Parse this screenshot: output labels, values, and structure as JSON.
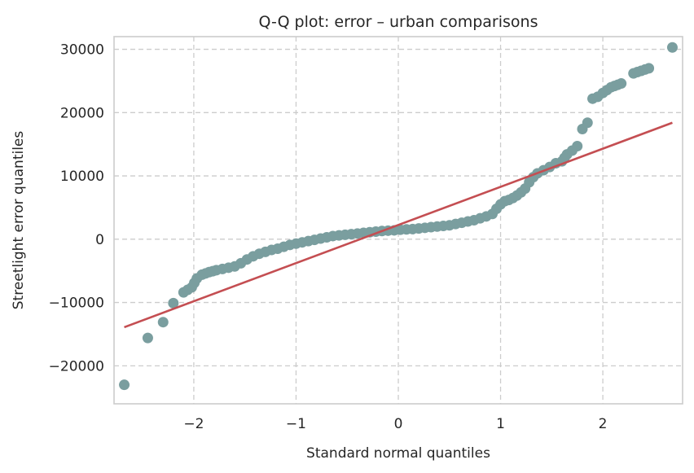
{
  "chart_data": {
    "type": "scatter",
    "title": "Q-Q plot: error – urban comparisons",
    "xlabel": "Standard normal quantiles",
    "ylabel": "Streetlight error quantiles",
    "xlim": [
      -2.78,
      2.78
    ],
    "ylim": [
      -26000,
      32000
    ],
    "xticks": [
      -2,
      -1,
      0,
      1,
      2
    ],
    "xtick_labels": [
      "−2",
      "−1",
      "0",
      "1",
      "2"
    ],
    "yticks": [
      -20000,
      -10000,
      0,
      10000,
      20000,
      30000
    ],
    "ytick_labels": [
      "−20000",
      "−10000",
      "0",
      "10000",
      "20000",
      "30000"
    ],
    "grid": true,
    "colors": {
      "points": "#7a9e9f",
      "reference_line": "#c44e52"
    },
    "reference_line": {
      "x": [
        -2.68,
        2.68
      ],
      "y": [
        -13900,
        18400
      ]
    },
    "series": [
      {
        "x": [
          -2.68,
          -2.45,
          -2.3,
          -2.2,
          -2.1,
          -2.02,
          -1.97,
          -1.92,
          -1.85,
          -1.78,
          -1.72,
          -1.66,
          -1.6,
          -1.54,
          -1.48,
          -1.42,
          -1.36,
          -1.3,
          -1.24,
          -1.18,
          -1.12,
          -1.06,
          -1.0,
          -0.94,
          -0.88,
          -0.82,
          -0.76,
          -0.7,
          -0.64,
          -0.58,
          -0.52,
          -0.46,
          -0.4,
          -0.34,
          -0.28,
          -0.22,
          -0.16,
          -0.1,
          -0.04,
          0.02,
          0.08,
          0.14,
          0.2,
          0.26,
          0.32,
          0.38,
          0.44,
          0.5,
          0.56,
          0.62,
          0.68,
          0.74,
          0.8,
          0.86,
          0.92,
          0.96,
          1.0,
          1.04,
          1.08,
          1.12,
          1.16,
          1.2,
          1.24,
          1.28,
          1.32,
          1.36,
          1.42,
          1.48,
          1.54,
          1.6,
          1.65,
          1.7,
          1.75,
          1.8,
          1.85,
          1.9,
          1.95,
          2.0,
          2.08,
          2.18,
          2.3,
          2.45,
          2.68
        ],
        "y": [
          -23000,
          -15600,
          -13100,
          -10100,
          -8400,
          -7600,
          -6200,
          -5600,
          -5200,
          -4900,
          -4700,
          -4500,
          -4300,
          -3800,
          -3200,
          -2700,
          -2300,
          -2000,
          -1700,
          -1500,
          -1200,
          -900,
          -700,
          -500,
          -300,
          -100,
          100,
          300,
          500,
          600,
          700,
          800,
          900,
          1000,
          1100,
          1200,
          1300,
          1350,
          1400,
          1500,
          1550,
          1600,
          1700,
          1800,
          1900,
          2000,
          2100,
          2200,
          2400,
          2600,
          2800,
          3000,
          3300,
          3600,
          4000,
          4800,
          5500,
          6000,
          6200,
          6500,
          6900,
          7400,
          8000,
          9000,
          9800,
          10400,
          10900,
          11400,
          12000,
          12300,
          13400,
          14000,
          14700,
          17400,
          18400,
          22200,
          22500,
          23100,
          24000,
          24600,
          26200,
          27000,
          30300
        ]
      }
    ]
  }
}
